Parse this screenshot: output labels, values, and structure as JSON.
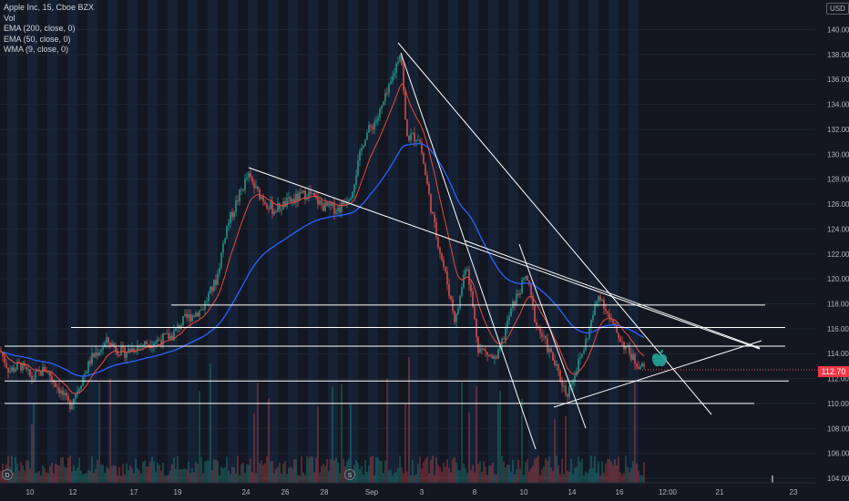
{
  "legend": {
    "title": "Apple Inc, 15, Cboe BZX",
    "items": [
      "Vol",
      "EMA (200, close, 0)",
      "EMA (50, close, 0)",
      "WMA (9, close, 0)"
    ]
  },
  "currency_label": "USD",
  "last_price": "112.70",
  "colors": {
    "background": "#131722",
    "session_band": "#172a45",
    "up": "#26a69a",
    "down": "#ef5350",
    "ema200": "#2962ff",
    "ema50": "#e84b3c",
    "wma9": "#e84b3c",
    "drawing": "#ffffff",
    "axis_text": "#b2b5be"
  },
  "icons": {
    "event_markers": [
      "dividend-icon",
      "split-icon"
    ],
    "watermark": "apple-logo-icon"
  },
  "chart_data": {
    "type": "candlestick",
    "symbol": "Apple Inc",
    "interval": "15",
    "exchange": "Cboe BZX",
    "currency": "USD",
    "y_ticks": [
      104,
      106,
      108,
      110,
      112,
      114,
      116,
      118,
      120,
      122,
      124,
      126,
      128,
      130,
      132,
      134,
      136,
      138,
      140
    ],
    "ylim": [
      103.5,
      140.6
    ],
    "x_ticks": [
      "10",
      "12",
      "17",
      "19",
      "24",
      "26",
      "28",
      "Sep",
      "3",
      "8",
      "10",
      "14",
      "16",
      "12:00",
      "21",
      "23"
    ],
    "last_price": 112.7,
    "price_path": [
      [
        0,
        114.3
      ],
      [
        10,
        112.6
      ],
      [
        22,
        113.1
      ],
      [
        35,
        112.0
      ],
      [
        50,
        112.8
      ],
      [
        62,
        111.5
      ],
      [
        76,
        109.8
      ],
      [
        88,
        111.6
      ],
      [
        100,
        113.6
      ],
      [
        118,
        115.0
      ],
      [
        135,
        114.0
      ],
      [
        150,
        114.6
      ],
      [
        170,
        115.0
      ],
      [
        188,
        115.4
      ],
      [
        202,
        116.7
      ],
      [
        222,
        117.6
      ],
      [
        238,
        120.0
      ],
      [
        248,
        124.0
      ],
      [
        262,
        126.6
      ],
      [
        272,
        128.3
      ],
      [
        282,
        127.0
      ],
      [
        300,
        125.5
      ],
      [
        318,
        126.2
      ],
      [
        338,
        126.9
      ],
      [
        355,
        125.8
      ],
      [
        372,
        125.6
      ],
      [
        386,
        127.0
      ],
      [
        400,
        131.4
      ],
      [
        415,
        133.0
      ],
      [
        428,
        135.4
      ],
      [
        440,
        138.5
      ],
      [
        446,
        131.4
      ],
      [
        460,
        131.4
      ],
      [
        476,
        124.5
      ],
      [
        490,
        120.0
      ],
      [
        500,
        116.5
      ],
      [
        512,
        121.5
      ],
      [
        525,
        114.5
      ],
      [
        545,
        113.4
      ],
      [
        562,
        117.7
      ],
      [
        578,
        120.3
      ],
      [
        588,
        116.5
      ],
      [
        606,
        113.7
      ],
      [
        622,
        110.7
      ],
      [
        640,
        114.2
      ],
      [
        658,
        118.9
      ],
      [
        670,
        116.6
      ],
      [
        684,
        114.8
      ],
      [
        698,
        113.3
      ],
      [
        710,
        112.7
      ]
    ],
    "horizontal_levels": [
      117.9,
      116.1,
      114.6,
      111.8,
      110.0
    ],
    "trendlines": [
      {
        "from": [
          "Aug 24",
          129.1
        ],
        "to": [
          "Sep 16",
          113.0
        ]
      },
      {
        "from": [
          "Sep 2",
          138.8
        ],
        "to": [
          "Sep 18",
          107.0
        ]
      },
      {
        "from": [
          "Sep 2",
          138.2
        ],
        "to": [
          "Sep 10",
          105.4
        ]
      },
      {
        "from": [
          "Sep 9",
          124.0
        ],
        "to": [
          "Sep 14",
          106.7
        ]
      },
      {
        "from": [
          "Sep 8",
          123.0
        ],
        "to": [
          "Sep 18",
          114.8
        ]
      },
      {
        "from": [
          "Sep 14",
          109.8
        ],
        "to": [
          "Sep 18",
          115.1
        ]
      }
    ],
    "indicators": [
      "Vol",
      "EMA (200, close, 0)",
      "EMA (50, close, 0)",
      "WMA (9, close, 0)"
    ]
  }
}
